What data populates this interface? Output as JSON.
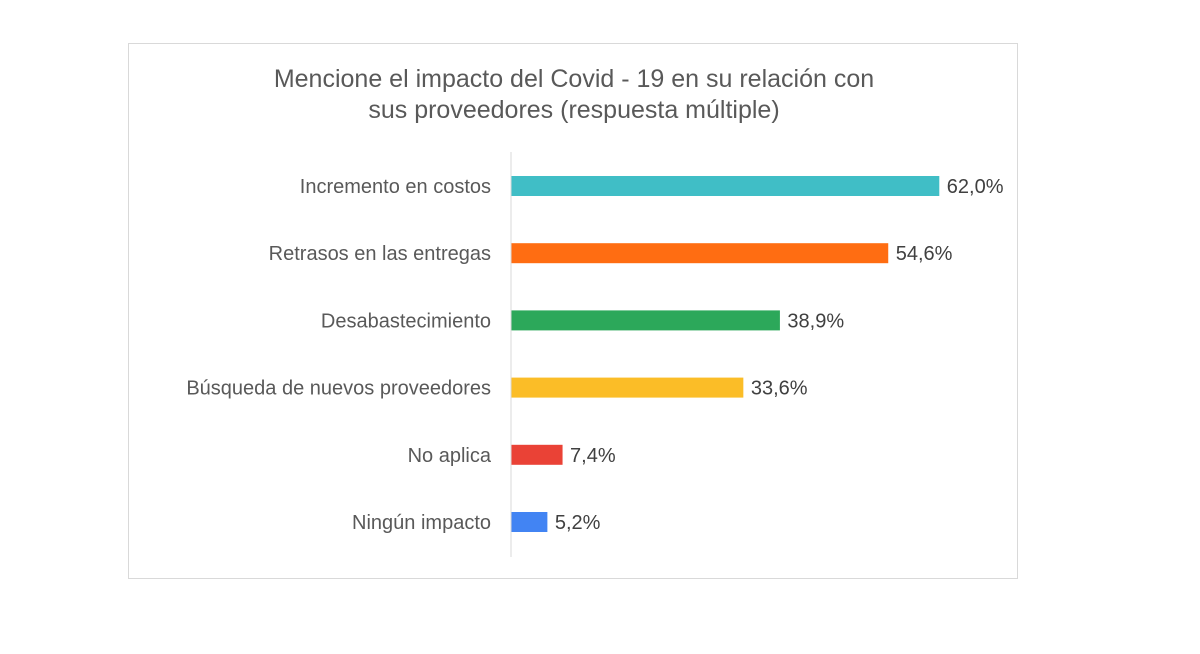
{
  "chart_data": {
    "type": "bar",
    "orientation": "horizontal",
    "title_lines": [
      "Mencione el impacto del Covid - 19 en su relación con",
      "sus proveedores (respuesta múltiple)"
    ],
    "categories": [
      "Incremento en costos",
      "Retrasos en las entregas",
      "Desabastecimiento",
      "Búsqueda de nuevos proveedores",
      "No aplica",
      "Ningún impacto"
    ],
    "values": [
      62.0,
      54.6,
      38.9,
      33.6,
      7.4,
      5.2
    ],
    "value_labels": [
      "62,0%",
      "54,6%",
      "38,9%",
      "33,6%",
      "7,4%",
      "5,2%"
    ],
    "colors": [
      "#40bec6",
      "#ff6d12",
      "#2ca85a",
      "#fbbd27",
      "#ea4236",
      "#4284f3"
    ],
    "xlim": [
      0,
      100
    ],
    "grid": false,
    "legend": "none"
  }
}
